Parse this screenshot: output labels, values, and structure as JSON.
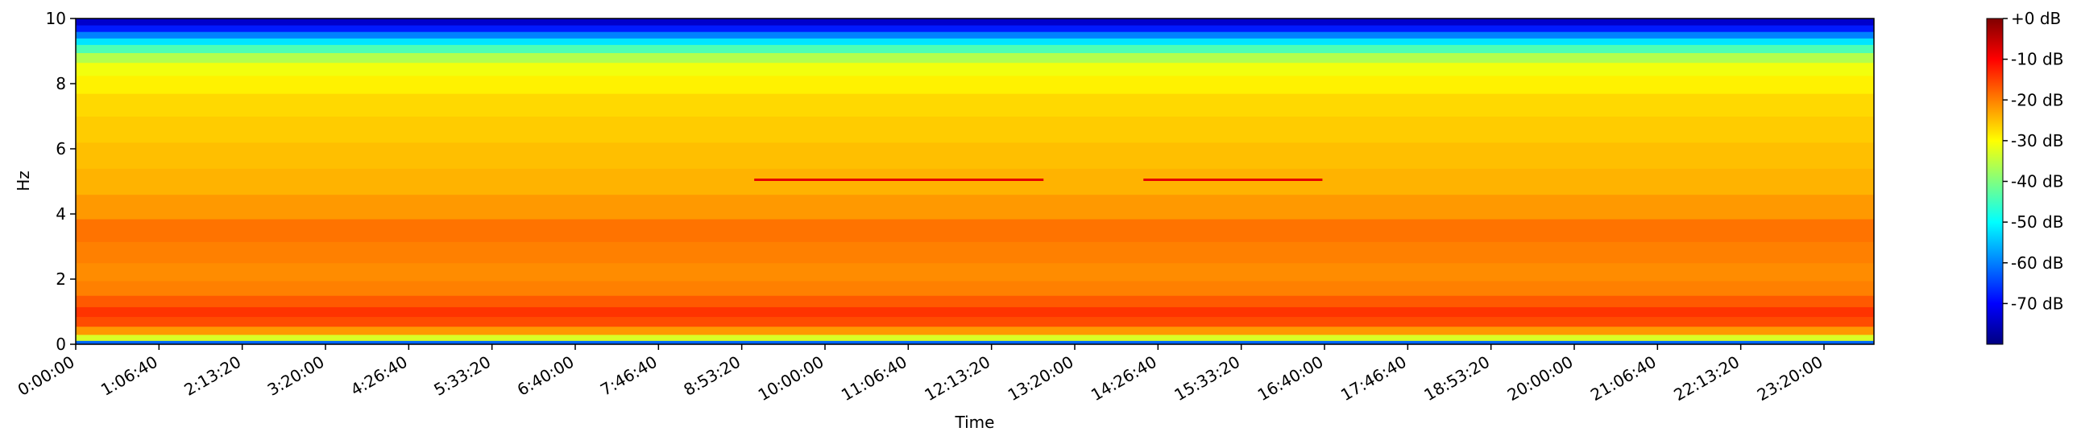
{
  "chart_data": {
    "type": "spectrogram",
    "xlabel": "Time",
    "ylabel": "Hz",
    "xlim": [
      0,
      86400
    ],
    "ylim": [
      0,
      10
    ],
    "xticks": [
      {
        "value": 0,
        "label": "0:00:00"
      },
      {
        "value": 4000,
        "label": "1:06:40"
      },
      {
        "value": 8000,
        "label": "2:13:20"
      },
      {
        "value": 12000,
        "label": "3:20:00"
      },
      {
        "value": 16000,
        "label": "4:26:40"
      },
      {
        "value": 20000,
        "label": "5:33:20"
      },
      {
        "value": 24000,
        "label": "6:40:00"
      },
      {
        "value": 28000,
        "label": "7:46:40"
      },
      {
        "value": 32000,
        "label": "8:53:20"
      },
      {
        "value": 36000,
        "label": "10:00:00"
      },
      {
        "value": 40000,
        "label": "11:06:40"
      },
      {
        "value": 44000,
        "label": "12:13:20"
      },
      {
        "value": 48000,
        "label": "13:20:00"
      },
      {
        "value": 52000,
        "label": "14:26:40"
      },
      {
        "value": 56000,
        "label": "15:33:20"
      },
      {
        "value": 60000,
        "label": "16:40:00"
      },
      {
        "value": 64000,
        "label": "17:46:40"
      },
      {
        "value": 68000,
        "label": "18:53:20"
      },
      {
        "value": 72000,
        "label": "20:00:00"
      },
      {
        "value": 76000,
        "label": "21:06:40"
      },
      {
        "value": 80000,
        "label": "22:13:20"
      },
      {
        "value": 84000,
        "label": "23:20:00"
      }
    ],
    "yticks": [
      0,
      2,
      4,
      6,
      8,
      10
    ],
    "colormap": "jet",
    "clim": [
      -80,
      0
    ],
    "cticks": [
      {
        "value": 0,
        "label": "+0 dB"
      },
      {
        "value": -10,
        "label": "-10 dB"
      },
      {
        "value": -20,
        "label": "-20 dB"
      },
      {
        "value": -30,
        "label": "-30 dB"
      },
      {
        "value": -40,
        "label": "-40 dB"
      },
      {
        "value": -50,
        "label": "-50 dB"
      },
      {
        "value": -60,
        "label": "-60 dB"
      },
      {
        "value": -70,
        "label": "-70 dB"
      }
    ],
    "frequencies": [
      0.03,
      0.2,
      0.4,
      0.7,
      1.0,
      1.3,
      1.7,
      2.2,
      2.8,
      3.5,
      4.2,
      5.0,
      5.8,
      6.6,
      7.4,
      8.0,
      8.5,
      8.8,
      9.1,
      9.3,
      9.5,
      9.7,
      9.9
    ],
    "levels": [
      -62,
      -33,
      -22,
      -16,
      -14,
      -17,
      -20,
      -21,
      -20,
      -19,
      -22,
      -24,
      -25,
      -26,
      -27,
      -29,
      -31,
      -36,
      -44,
      -52,
      -60,
      -68,
      -74
    ],
    "tones": {
      "x_start": [
        32600,
        51300
      ],
      "x_end": [
        46500,
        59900
      ],
      "y": [
        5.05,
        5.05
      ],
      "levels": [
        -8,
        -8
      ]
    }
  }
}
